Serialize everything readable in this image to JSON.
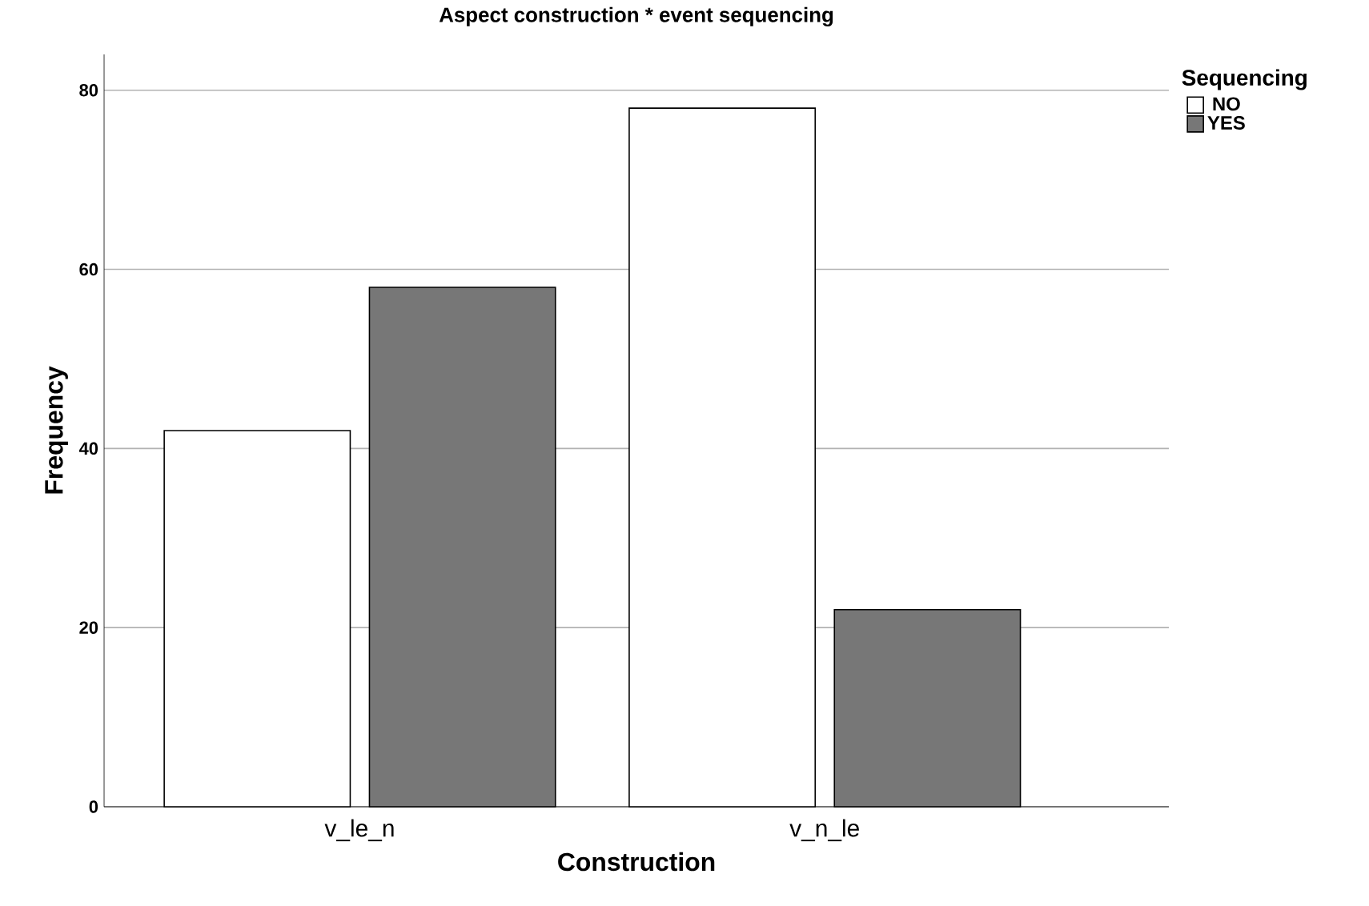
{
  "chart_data": {
    "type": "bar",
    "title": "Aspect construction * event sequencing",
    "xlabel": "Construction",
    "ylabel": "Frequency",
    "legend_title": "Sequencing",
    "categories": [
      "v_le_n",
      "v_n_le"
    ],
    "series": [
      {
        "name": "NO",
        "color": "#ffffff",
        "values": [
          42,
          78
        ]
      },
      {
        "name": "YES",
        "color": "#777777",
        "values": [
          58,
          22
        ]
      }
    ],
    "ylim": [
      0,
      84
    ],
    "yticks": [
      0,
      20,
      40,
      60,
      80
    ],
    "grid": "y",
    "legend": "top right"
  }
}
